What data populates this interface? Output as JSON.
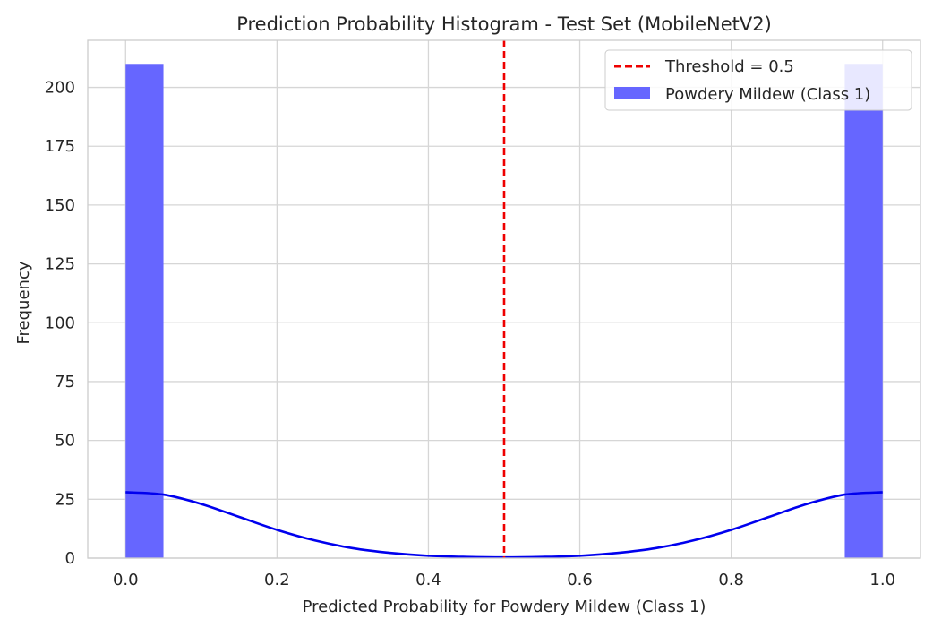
{
  "chart_data": {
    "type": "bar",
    "title": "Prediction Probability Histogram - Test Set (MobileNetV2)",
    "xlabel": "Predicted Probability for Powdery Mildew (Class 1)",
    "ylabel": "Frequency",
    "xlim": [
      -0.05,
      1.05
    ],
    "ylim": [
      0,
      220
    ],
    "xticks": [
      0.0,
      0.2,
      0.4,
      0.6,
      0.8,
      1.0
    ],
    "xtick_labels": [
      "0.0",
      "0.2",
      "0.4",
      "0.6",
      "0.8",
      "1.0"
    ],
    "yticks": [
      0,
      25,
      50,
      75,
      100,
      125,
      150,
      175,
      200
    ],
    "ytick_labels": [
      "0",
      "25",
      "50",
      "75",
      "100",
      "125",
      "150",
      "175",
      "200"
    ],
    "grid": true,
    "bins": [
      {
        "x0": 0.0,
        "x1": 0.05,
        "value": 210
      },
      {
        "x0": 0.95,
        "x1": 1.0,
        "value": 210
      }
    ],
    "bar_color": "#6666ff",
    "kde": {
      "color": "#0000ee",
      "x": [
        0.0,
        0.05,
        0.1,
        0.15,
        0.2,
        0.25,
        0.3,
        0.35,
        0.4,
        0.45,
        0.5,
        0.55,
        0.6,
        0.65,
        0.7,
        0.75,
        0.8,
        0.85,
        0.9,
        0.95,
        1.0
      ],
      "y": [
        28,
        27,
        23,
        17.5,
        12,
        7.5,
        4.2,
        2.2,
        1.0,
        0.5,
        0.3,
        0.5,
        1.0,
        2.2,
        4.2,
        7.5,
        12,
        17.5,
        23,
        27,
        28
      ]
    },
    "threshold": {
      "x": 0.5,
      "color": "#ee0000"
    },
    "legend": {
      "placement": "top-right",
      "entries": [
        {
          "label": "Threshold = 0.5",
          "kind": "dashed-line",
          "color": "#ee0000"
        },
        {
          "label": "Powdery Mildew (Class 1)",
          "kind": "patch",
          "color": "#6666ff"
        }
      ]
    }
  }
}
